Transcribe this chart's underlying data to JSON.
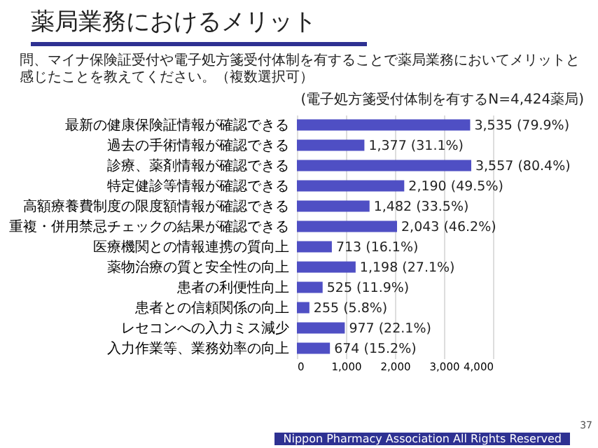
{
  "chart_data": {
    "type": "bar",
    "orientation": "horizontal",
    "title": "薬局業務におけるメリット",
    "subtitle": "問、マイナ保険証受付や電子処方箋受付体制を有することで薬局業務においてメリットと感じたことを教えてください。（複数選択可）",
    "annotations": [
      "(電子処方箋受付体制を有するN=4,424薬局)",
      "Nippon Pharmacy Association All Rights Reserved",
      "37"
    ],
    "categories": [
      "最新の健康保険証情報が確認できる",
      "過去の手術情報が確認できる",
      "診療、薬剤情報が確認できる",
      "特定健診等情報が確認できる",
      "高額療養費制度の限度額情報が確認できる",
      "重複・併用禁忌チェックの結果が確認できる",
      "医療機関との情報連携の質向上",
      "薬物治療の質と安全性の向上",
      "患者の利便性向上",
      "患者との信頼関係の向上",
      "レセコンへの入力ミス減少",
      "入力作業等、業務効率の向上"
    ],
    "values": [
      3535,
      1377,
      3557,
      2190,
      1482,
      2043,
      713,
      1198,
      525,
      255,
      977,
      674
    ],
    "value_labels": [
      "3,535 (79.9%)",
      "1,377 (31.1%)",
      "3,557 (80.4%)",
      "2,190 (49.5%)",
      "1,482 (33.5%)",
      "2,043 (46.2%)",
      "713 (16.1%)",
      "1,198 (27.1%)",
      "525 (11.9%)",
      "255 (5.8%)",
      "977 (22.1%)",
      "674 (15.2%)"
    ],
    "color": "#4f4fc4",
    "xlim": [
      0,
      4000
    ],
    "xticks": [
      0,
      {
        "value": 1000,
        "label": "1,000"
      },
      {
        "value": 2000,
        "label": "2,000"
      },
      {
        "value": 3000,
        "label": "3,000"
      },
      {
        "value": 4000,
        "label": "4,000"
      }
    ],
    "grid": "x"
  }
}
